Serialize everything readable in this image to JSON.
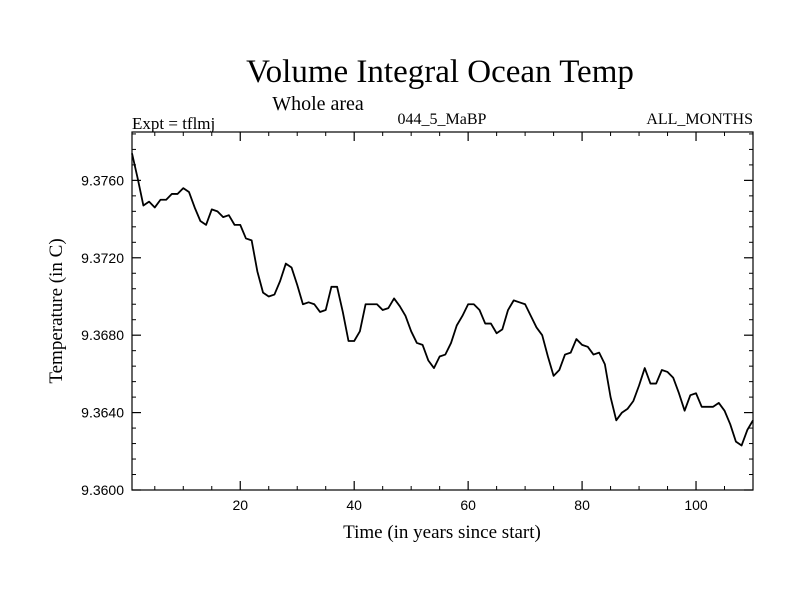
{
  "chart_data": {
    "type": "line",
    "title": "Volume Integral Ocean Temp",
    "subtitle": "Whole area",
    "left_annotation": "Expt = tflmj",
    "center_annotation": "044_5_MaBP",
    "right_annotation": "ALL_MONTHS",
    "xlabel": "Time (in years since start)",
    "ylabel": "Temperature (in C)",
    "xlim": [
      1,
      110
    ],
    "ylim": [
      9.36,
      9.3785
    ],
    "x_ticks": [
      20,
      40,
      60,
      80,
      100
    ],
    "y_ticks": [
      9.36,
      9.364,
      9.368,
      9.372,
      9.376
    ],
    "y_tick_labels": [
      "9.3600",
      "9.3640",
      "9.3680",
      "9.3720",
      "9.3760"
    ],
    "line_color": "#000000",
    "series": [
      {
        "name": "Volume Integral Ocean Temp",
        "x": [
          1,
          2,
          3,
          4,
          5,
          6,
          7,
          8,
          9,
          10,
          11,
          12,
          13,
          14,
          15,
          16,
          17,
          18,
          19,
          20,
          21,
          22,
          23,
          24,
          25,
          26,
          27,
          28,
          29,
          30,
          31,
          32,
          33,
          34,
          35,
          36,
          37,
          38,
          39,
          40,
          41,
          42,
          43,
          44,
          45,
          46,
          47,
          48,
          49,
          50,
          51,
          52,
          53,
          54,
          55,
          56,
          57,
          58,
          59,
          60,
          61,
          62,
          63,
          64,
          65,
          66,
          67,
          68,
          69,
          70,
          71,
          72,
          73,
          74,
          75,
          76,
          77,
          78,
          79,
          80,
          81,
          82,
          83,
          84,
          85,
          86,
          87,
          88,
          89,
          90,
          91,
          92,
          93,
          94,
          95,
          96,
          97,
          98,
          99,
          100,
          101,
          102,
          103,
          104,
          105,
          106,
          107,
          108,
          109,
          110
        ],
        "values": [
          9.3774,
          9.3761,
          9.3747,
          9.3749,
          9.3746,
          9.375,
          9.375,
          9.3753,
          9.3753,
          9.3756,
          9.3754,
          9.3746,
          9.3739,
          9.3737,
          9.3745,
          9.3744,
          9.3741,
          9.3742,
          9.3737,
          9.3737,
          9.373,
          9.3729,
          9.3713,
          9.3702,
          9.37,
          9.3701,
          9.3708,
          9.3717,
          9.3715,
          9.3706,
          9.3696,
          9.3697,
          9.3696,
          9.3692,
          9.3693,
          9.3705,
          9.3705,
          9.3692,
          9.3677,
          9.3677,
          9.3682,
          9.3696,
          9.3696,
          9.3696,
          9.3693,
          9.3694,
          9.3699,
          9.3695,
          9.369,
          9.3682,
          9.3676,
          9.3675,
          9.3667,
          9.3663,
          9.3669,
          9.367,
          9.3676,
          9.3685,
          9.369,
          9.3696,
          9.3696,
          9.3693,
          9.3686,
          9.3686,
          9.3681,
          9.3683,
          9.3693,
          9.3698,
          9.3697,
          9.3696,
          9.369,
          9.3684,
          9.368,
          9.3669,
          9.3659,
          9.3662,
          9.367,
          9.3671,
          9.3678,
          9.3675,
          9.3674,
          9.367,
          9.3671,
          9.3665,
          9.3648,
          9.3636,
          9.364,
          9.3642,
          9.3646,
          9.3654,
          9.3663,
          9.3655,
          9.3655,
          9.3662,
          9.3661,
          9.3658,
          9.365,
          9.3641,
          9.3649,
          9.365,
          9.3643,
          9.3643,
          9.3643,
          9.3645,
          9.3641,
          9.3634,
          9.3625,
          9.3623,
          9.3631,
          9.3636
        ]
      }
    ]
  }
}
